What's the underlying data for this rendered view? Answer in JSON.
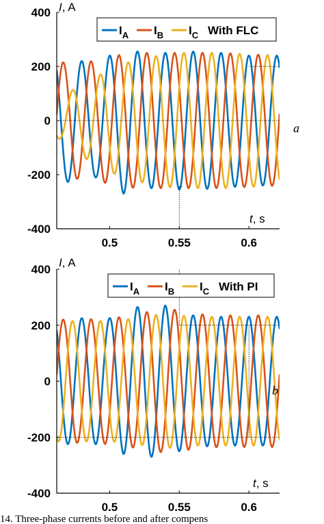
{
  "colors": {
    "phase_a": "#0072bd",
    "phase_b": "#d95319",
    "phase_c": "#edb120",
    "axis": "#000000",
    "guide": "#000000"
  },
  "caption": "14. Three-phase currents before and after compens",
  "chart_data": [
    {
      "type": "line",
      "panel_letter": "a",
      "ylabel": "I, A",
      "xlabel": "t, s",
      "xlim": [
        0.462,
        0.622
      ],
      "ylim": [
        -400,
        400
      ],
      "xticks": [
        0.5,
        0.55,
        0.6
      ],
      "xtick_labels": [
        "0.5",
        "0.55",
        "0.6"
      ],
      "yticks": [
        400,
        200,
        0,
        -200,
        -400
      ],
      "ytick_labels": [
        "400",
        "200",
        "0",
        "-200",
        "-400"
      ],
      "grid": false,
      "legend": {
        "placement": "top-right",
        "entries": [
          {
            "name": "A",
            "prefix": "I",
            "color_key": "phase_a"
          },
          {
            "name": "B",
            "prefix": "I",
            "color_key": "phase_b"
          },
          {
            "name": "C",
            "prefix": "I",
            "color_key": "phase_c"
          }
        ],
        "suffix": "With FLC"
      },
      "frequency_hz": 50,
      "series": [
        {
          "name": "A",
          "phase_deg": 90,
          "color_key": "phase_a",
          "envelope_t": [
            0.462,
            0.475,
            0.49,
            0.5,
            0.51,
            0.52,
            0.53,
            0.54,
            0.55,
            0.56,
            0.58,
            0.6,
            0.622
          ],
          "envelope_amp": [
            230,
            225,
            210,
            240,
            270,
            255,
            250,
            250,
            255,
            255,
            250,
            240,
            240
          ]
        },
        {
          "name": "B",
          "phase_deg": -30,
          "color_key": "phase_b",
          "envelope_t": [
            0.462,
            0.475,
            0.49,
            0.5,
            0.51,
            0.52,
            0.53,
            0.54,
            0.55,
            0.56,
            0.58,
            0.6,
            0.622
          ],
          "envelope_amp": [
            215,
            215,
            220,
            235,
            245,
            250,
            250,
            250,
            250,
            250,
            250,
            245,
            240
          ]
        },
        {
          "name": "C",
          "phase_deg": 210,
          "color_key": "phase_c",
          "envelope_t": [
            0.462,
            0.475,
            0.49,
            0.5,
            0.51,
            0.52,
            0.53,
            0.54,
            0.55,
            0.56,
            0.58,
            0.6,
            0.622
          ],
          "envelope_amp": [
            60,
            120,
            160,
            190,
            210,
            225,
            235,
            245,
            250,
            250,
            250,
            245,
            240
          ]
        }
      ],
      "guide_lines": [
        {
          "axis": "y",
          "value": 0,
          "from_x": 0.462,
          "to_x": 0.622
        },
        {
          "axis": "y",
          "value": 200,
          "from_x": 0.6,
          "to_x": 0.622
        },
        {
          "axis": "x",
          "value": 0.55,
          "from_y": -400,
          "to_y": -245
        },
        {
          "axis": "y",
          "value": -245,
          "from_x": 0.55,
          "to_x": 0.552
        }
      ]
    },
    {
      "type": "line",
      "panel_letter": "b",
      "ylabel": "I, A",
      "xlabel": "t, s",
      "xlim": [
        0.462,
        0.622
      ],
      "ylim": [
        -400,
        400
      ],
      "xticks": [
        0.5,
        0.55,
        0.6
      ],
      "xtick_labels": [
        "0.5",
        "0.55",
        "0.6"
      ],
      "yticks": [
        400,
        200,
        0,
        -200,
        -400
      ],
      "ytick_labels": [
        "400",
        "200",
        "0",
        "-200",
        "-400"
      ],
      "grid": false,
      "legend": {
        "placement": "top-right",
        "entries": [
          {
            "name": "A",
            "prefix": "I",
            "color_key": "phase_a"
          },
          {
            "name": "B",
            "prefix": "I",
            "color_key": "phase_b"
          },
          {
            "name": "C",
            "prefix": "I",
            "color_key": "phase_c"
          }
        ],
        "suffix": "With PI"
      },
      "frequency_hz": 50,
      "series": [
        {
          "name": "A",
          "phase_deg": 90,
          "color_key": "phase_a",
          "envelope_t": [
            0.462,
            0.48,
            0.5,
            0.51,
            0.52,
            0.53,
            0.54,
            0.55,
            0.56,
            0.58,
            0.6,
            0.622
          ],
          "envelope_amp": [
            225,
            225,
            225,
            260,
            265,
            270,
            270,
            250,
            235,
            230,
            230,
            230
          ]
        },
        {
          "name": "B",
          "phase_deg": -30,
          "color_key": "phase_b",
          "envelope_t": [
            0.462,
            0.48,
            0.5,
            0.51,
            0.52,
            0.53,
            0.54,
            0.55,
            0.56,
            0.58,
            0.6,
            0.622
          ],
          "envelope_amp": [
            220,
            220,
            225,
            230,
            240,
            250,
            255,
            255,
            240,
            235,
            235,
            235
          ]
        },
        {
          "name": "C",
          "phase_deg": 210,
          "color_key": "phase_c",
          "envelope_t": [
            0.462,
            0.48,
            0.5,
            0.51,
            0.52,
            0.53,
            0.54,
            0.55,
            0.56,
            0.58,
            0.6,
            0.622
          ],
          "envelope_amp": [
            215,
            215,
            215,
            220,
            225,
            235,
            240,
            235,
            230,
            230,
            230,
            230
          ]
        }
      ],
      "guide_lines": [
        {
          "axis": "y",
          "value": 200,
          "from_x": 0.55,
          "to_x": 0.622
        },
        {
          "axis": "y",
          "value": -200,
          "from_x": 0.462,
          "to_x": 0.622
        },
        {
          "axis": "x",
          "value": 0.55,
          "from_y": 200,
          "to_y": 400
        },
        {
          "axis": "x",
          "value": 0.6,
          "from_y": -200,
          "to_y": 200
        }
      ]
    }
  ]
}
